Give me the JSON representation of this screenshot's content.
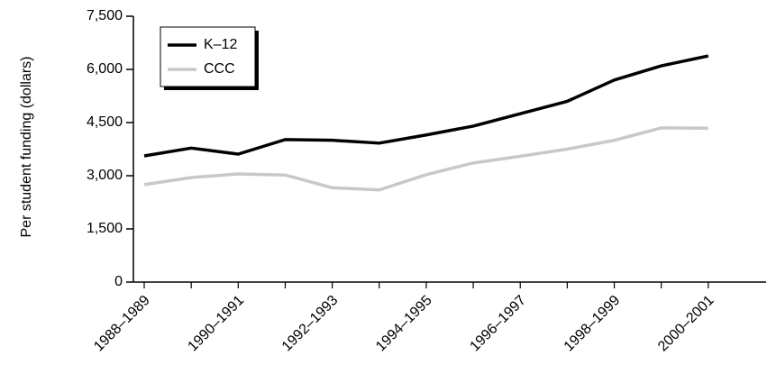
{
  "chart_data": {
    "type": "line",
    "y_label": "Per student funding (dollars)",
    "categories": [
      "1988–1989",
      null,
      "1990–1991",
      null,
      "1992–1993",
      null,
      "1994–1995",
      null,
      "1996–1997",
      null,
      "1998–1999",
      null,
      "2000–2001"
    ],
    "series": [
      {
        "name": "K–12",
        "color": "#000000",
        "values": [
          3560,
          3780,
          3610,
          4020,
          4000,
          3920,
          4150,
          4400,
          4750,
          5100,
          5700,
          6100,
          6380
        ]
      },
      {
        "name": "CCC",
        "color": "#c8c8c8",
        "values": [
          2750,
          2950,
          3050,
          3020,
          2660,
          2600,
          3030,
          3360,
          3550,
          3750,
          4000,
          4350,
          4340
        ]
      }
    ],
    "ylim": [
      0,
      7500
    ],
    "yticks": [
      0,
      {
        "value": 1500,
        "label": "1,500"
      },
      {
        "value": 3000,
        "label": "3,000"
      },
      {
        "value": 4500,
        "label": "4,500"
      },
      {
        "value": 6000,
        "label": "6,000"
      },
      {
        "value": 7500,
        "label": "7,500"
      }
    ],
    "legend": "top-left"
  }
}
